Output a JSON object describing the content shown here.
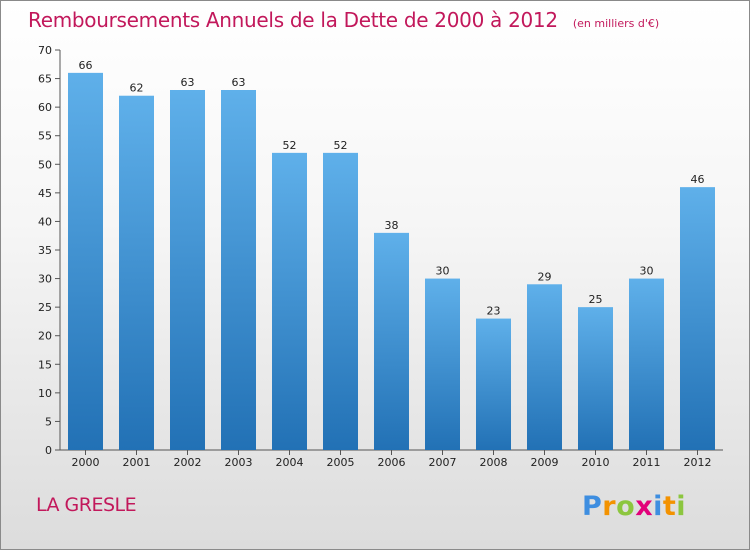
{
  "title": "Remboursements Annuels de la Dette de 2000 à 2012",
  "unit_note": "(en milliers d'€)",
  "commune": "LA GRESLE",
  "logo_text": "Proxiti",
  "colors": {
    "bar": "#3a8fd4",
    "bar_light": "#5fb0ea",
    "bar_dark": "#2271b5",
    "title": "#c2185b"
  },
  "chart_data": {
    "type": "bar",
    "title": "Remboursements Annuels de la Dette de 2000 à 2012",
    "xlabel": "",
    "ylabel": "(en milliers d'€)",
    "categories": [
      "2000",
      "2001",
      "2002",
      "2003",
      "2004",
      "2005",
      "2006",
      "2007",
      "2008",
      "2009",
      "2010",
      "2011",
      "2012"
    ],
    "values": [
      66,
      62,
      63,
      63,
      52,
      52,
      38,
      30,
      23,
      29,
      25,
      30,
      46
    ],
    "ylim": [
      0,
      70
    ],
    "yticks": [
      0,
      5,
      10,
      15,
      20,
      25,
      30,
      35,
      40,
      45,
      50,
      55,
      60,
      65,
      70
    ],
    "grid": false,
    "legend": "none"
  }
}
